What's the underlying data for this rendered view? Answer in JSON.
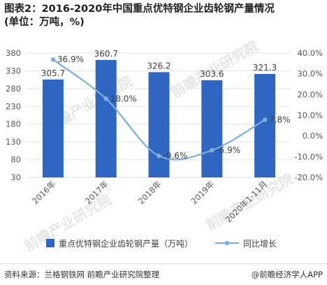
{
  "title": {
    "line1": "图表2：2016-2020年中国重点优特钢企业齿轮钢产量情况",
    "line2": "(单位：万吨，%)"
  },
  "colors": {
    "bar": "#2e66c2",
    "line": "#7faedc",
    "grid": "#e2e2e2",
    "axis_text": "#595959",
    "label_text": "#404040",
    "watermark": "#e6e6e6"
  },
  "chart_data": {
    "type": "bar",
    "categories": [
      "2016年",
      "2017年",
      "2018年",
      "2019年",
      "2020年1-11月"
    ],
    "series": [
      {
        "name": "重点优特钢企业齿轮钢产量（万吨）",
        "type": "bar",
        "axis": "left",
        "values": [
          305.7,
          360.7,
          326.2,
          303.6,
          321.3
        ],
        "labels": [
          "305.7",
          "360.7",
          "326.2",
          "303.6",
          "321.3"
        ]
      },
      {
        "name": "同比增长",
        "type": "line",
        "axis": "right",
        "smooth": true,
        "values": [
          36.9,
          18.0,
          -9.6,
          -6.9,
          7.8
        ],
        "labels": [
          "36.9%",
          "18.0%",
          "-9.6%",
          "-6.9%",
          "7.8%"
        ]
      }
    ],
    "y_left": {
      "min": 30,
      "max": 380,
      "ticks": [
        30,
        80,
        130,
        180,
        230,
        280,
        330,
        380
      ],
      "tick_labels": [
        "30",
        "80",
        "130",
        "180",
        "230",
        "280",
        "330",
        "380"
      ]
    },
    "y_right": {
      "min": -20,
      "max": 40,
      "ticks": [
        -20,
        -10,
        0,
        10,
        20,
        30,
        40
      ],
      "tick_labels": [
        "-20.0%",
        "-10.0%",
        "0.0%",
        "10.0%",
        "20.0%",
        "30.0%",
        "40.0%"
      ]
    },
    "grid": true,
    "legend_position": "bottom"
  },
  "watermarks": [
    "前瞻产业研究院",
    "前瞻产业研究院",
    "前瞻产业研究院",
    "前瞻产业研究院"
  ],
  "footer": {
    "source": "资料来源：兰格钢铁网 前瞻产业研究院整理",
    "brand": "@前瞻经济学人APP"
  }
}
